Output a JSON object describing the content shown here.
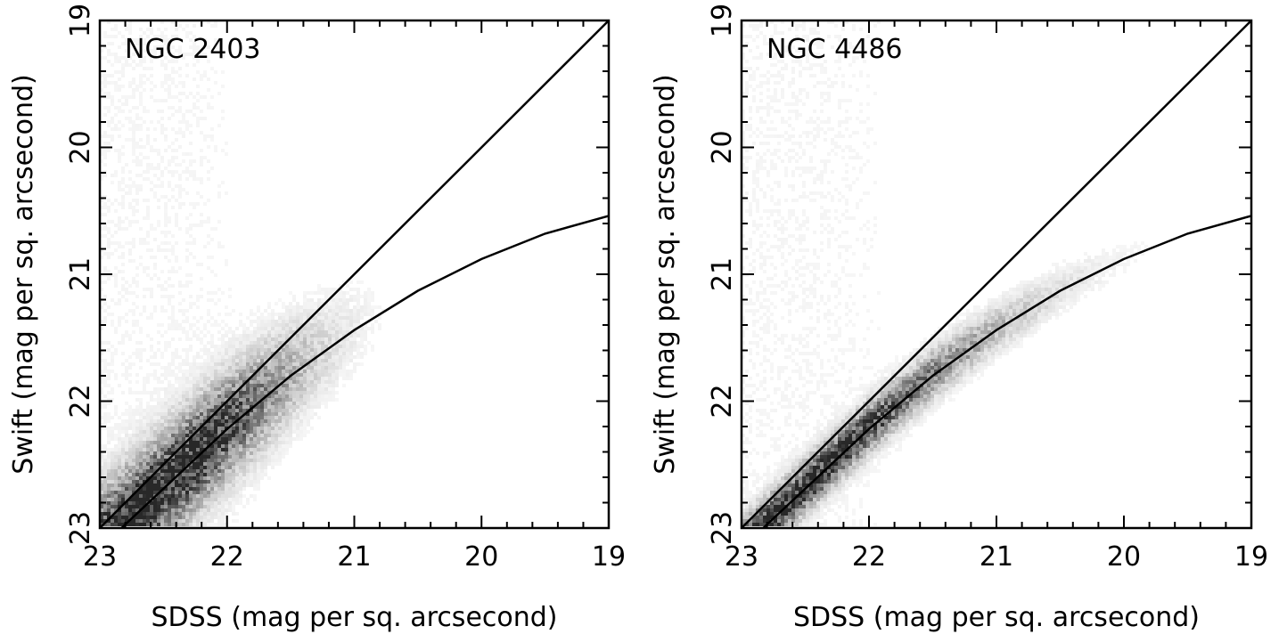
{
  "chart_data": [
    {
      "type": "heatmap",
      "title": "NGC 2403",
      "xlabel": "SDSS (mag per sq. arcsecond)",
      "ylabel": "Swift (mag per sq. arcsecond)",
      "xlim": [
        23,
        19
      ],
      "ylim": [
        23,
        19
      ],
      "xticks": [
        23,
        22,
        21,
        20,
        19
      ],
      "yticks": [
        23,
        22,
        21,
        20,
        19
      ],
      "x_minor_step": 0.2,
      "y_minor_step": 0.2,
      "grid": false,
      "density_colormap": "white-to-black",
      "density": {
        "ridge": "non-linear curve",
        "scatter": 0.26,
        "counts_peak_at_x": 22.4,
        "spread_to_x": 20.8
      },
      "series": [
        {
          "type": "line",
          "x": [
            23,
            22,
            21,
            20,
            19
          ],
          "y": [
            23,
            22,
            21,
            20,
            19
          ]
        },
        {
          "type": "line",
          "x": [
            22.83,
            22.5,
            22.0,
            21.5,
            21.0,
            20.5,
            20.0,
            19.5,
            19.0
          ],
          "y": [
            23.0,
            22.69,
            22.22,
            21.8,
            21.44,
            21.13,
            20.88,
            20.68,
            20.54
          ]
        }
      ]
    },
    {
      "type": "heatmap",
      "title": "NGC 4486",
      "xlabel": "SDSS (mag per sq. arcsecond)",
      "ylabel": "Swift (mag per sq. arcsecond)",
      "xlim": [
        23,
        19
      ],
      "ylim": [
        23,
        19
      ],
      "xticks": [
        23,
        22,
        21,
        20,
        19
      ],
      "yticks": [
        23,
        22,
        21,
        20,
        19
      ],
      "x_minor_step": 0.2,
      "y_minor_step": 0.2,
      "grid": false,
      "density_colormap": "white-to-black",
      "density": {
        "ridge": "non-linear curve",
        "scatter": 0.12,
        "counts_peak_at_x": 22.6,
        "spread_to_x": 19.9
      },
      "series": [
        {
          "type": "line",
          "x": [
            23,
            22,
            21,
            20,
            19
          ],
          "y": [
            23,
            22,
            21,
            20,
            19
          ]
        },
        {
          "type": "line",
          "x": [
            22.83,
            22.5,
            22.0,
            21.5,
            21.0,
            20.5,
            20.0,
            19.5,
            19.0
          ],
          "y": [
            23.0,
            22.69,
            22.22,
            21.8,
            21.44,
            21.13,
            20.88,
            20.68,
            20.54
          ]
        }
      ]
    }
  ]
}
